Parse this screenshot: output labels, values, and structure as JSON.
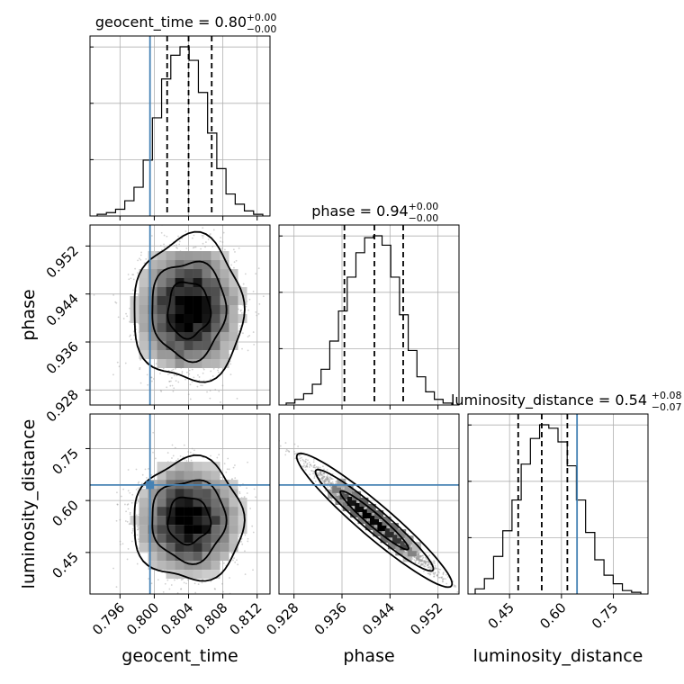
{
  "chart_data": {
    "type": "corner",
    "parameters": [
      {
        "name": "geocent_time",
        "axis_label": "geocent_time",
        "range": [
          0.7925,
          0.8135
        ],
        "ticks": [
          0.796,
          0.8,
          0.804,
          0.808,
          0.812
        ],
        "tick_labels": [
          "0.796",
          "0.800",
          "0.804",
          "0.808",
          "0.812"
        ],
        "truth": 0.7995,
        "quantiles": [
          0.8015,
          0.804,
          0.8067
        ],
        "title_main": "geocent_time = 0.80",
        "title_plus": "+0.00",
        "title_minus": "−0.00"
      },
      {
        "name": "phase",
        "axis_label": "phase",
        "range": [
          0.9255,
          0.9555
        ],
        "ticks": [
          0.928,
          0.936,
          0.944,
          0.952
        ],
        "tick_labels": [
          "0.928",
          "0.936",
          "0.944",
          "0.952"
        ],
        "truth": null,
        "quantiles": [
          0.9364,
          0.9414,
          0.9462
        ],
        "title_main": "phase = 0.94",
        "title_plus": "+0.00",
        "title_minus": "−0.00"
      },
      {
        "name": "luminosity_distance",
        "axis_label": "luminosity_distance",
        "range": [
          0.33,
          0.85
        ],
        "ticks": [
          0.45,
          0.6,
          0.75
        ],
        "tick_labels": [
          "0.45",
          "0.60",
          "0.75"
        ],
        "truth": 0.645,
        "quantiles": [
          0.475,
          0.543,
          0.617
        ],
        "title_main": "luminosity_distance = 0.54",
        "title_plus": "+0.08",
        "title_minus": "−0.07"
      }
    ],
    "histograms": [
      [
        1,
        2,
        4,
        9,
        17,
        33,
        58,
        81,
        95,
        100,
        92,
        73,
        49,
        28,
        13,
        7,
        3,
        1
      ],
      [
        1,
        3,
        6,
        11,
        19,
        34,
        50,
        68,
        81,
        89,
        90,
        85,
        68,
        48,
        29,
        15,
        7,
        3,
        1
      ],
      [
        3,
        9,
        22,
        37,
        55,
        76,
        91,
        99,
        97,
        89,
        75,
        55,
        36,
        20,
        11,
        6,
        2,
        1
      ]
    ],
    "truth_markers": [
      {
        "pair": [
          0,
          2
        ],
        "x": 0.7995,
        "y": 0.645
      }
    ],
    "contour_levels": 3,
    "colors": {
      "truth": "#4682b4",
      "hist": "#000000",
      "scatter": "#9a9a9a",
      "density": "#000000"
    }
  }
}
